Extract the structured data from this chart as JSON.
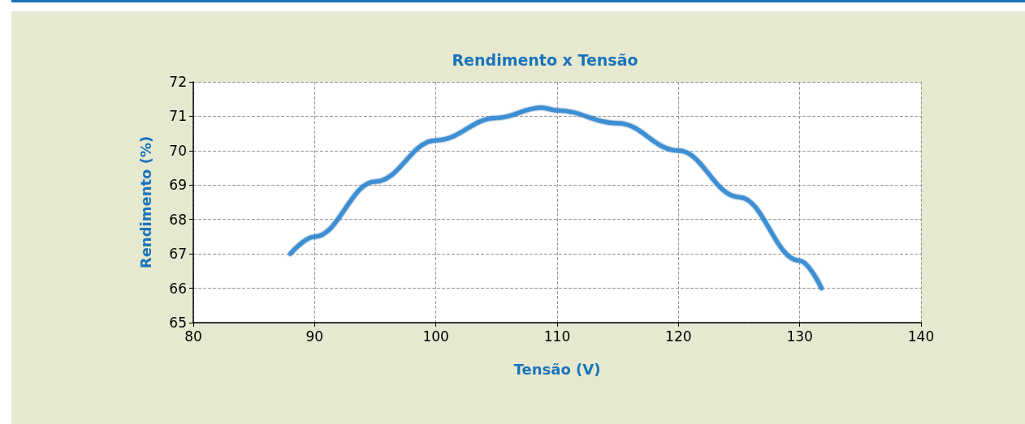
{
  "chart_data": {
    "type": "line",
    "title": "Rendimento x Tensão",
    "xlabel": "Tensão (V)",
    "ylabel": "Rendimento (%)",
    "x": [
      88,
      90,
      95,
      100,
      105,
      108.7,
      110,
      115,
      120,
      125,
      130,
      131.8
    ],
    "series": [
      {
        "color": "#3a8fd4",
        "values": [
          67.0,
          67.5,
          69.1,
          70.3,
          70.95,
          71.25,
          71.17,
          70.8,
          70.0,
          68.65,
          66.8,
          66.0
        ]
      }
    ],
    "xlim": [
      80,
      140
    ],
    "xticks": [
      80,
      90,
      100,
      110,
      120,
      130,
      140
    ],
    "ylim": [
      65,
      72
    ],
    "yticks": [
      65,
      66,
      67,
      68,
      69,
      70,
      71,
      72
    ],
    "grid": true,
    "marker": "none",
    "line_style": "solid"
  }
}
